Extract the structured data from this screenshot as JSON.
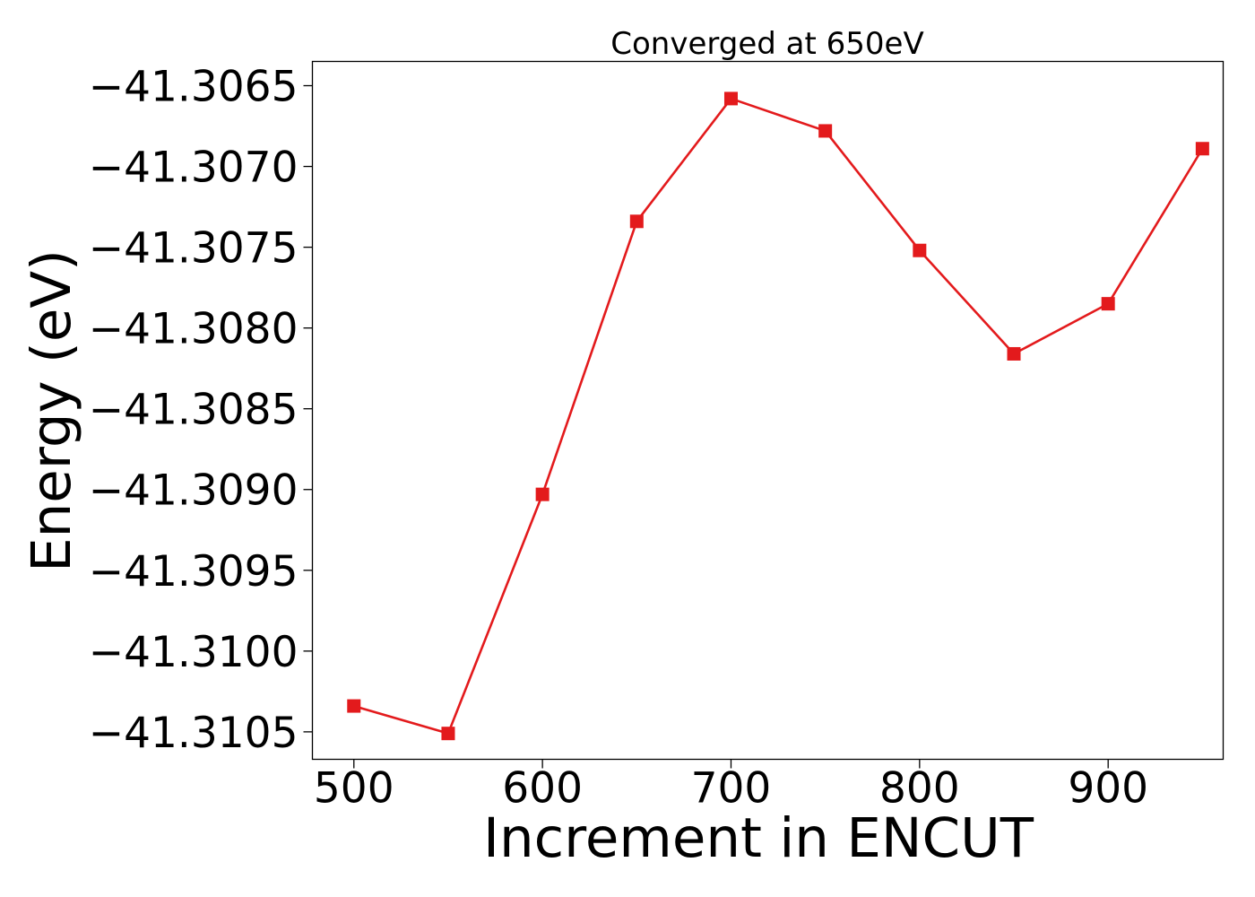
{
  "chart_data": {
    "type": "line",
    "title": "Converged at 650eV",
    "xlabel": "Increment in ENCUT",
    "ylabel": "Energy (eV)",
    "x": [
      500,
      550,
      600,
      650,
      700,
      750,
      800,
      850,
      900,
      950
    ],
    "series": [
      {
        "values": [
          -41.31034,
          -41.31051,
          -41.30903,
          -41.30734,
          -41.30658,
          -41.30678,
          -41.30752,
          -41.30816,
          -41.30785,
          -41.30689
        ],
        "color": "#e31a1c",
        "marker": "square"
      }
    ],
    "xlim": [
      478,
      961
    ],
    "ylim": [
      -41.31067,
      -41.30635
    ],
    "xticks": [
      500,
      600,
      700,
      800,
      900
    ],
    "xtick_labels": [
      "500",
      "600",
      "700",
      "800",
      "900"
    ],
    "yticks": [
      -41.3065,
      -41.307,
      -41.3075,
      -41.308,
      -41.3085,
      -41.309,
      -41.3095,
      -41.31,
      -41.3105
    ],
    "ytick_labels": [
      "−41.3065",
      "−41.3070",
      "−41.3075",
      "−41.3080",
      "−41.3085",
      "−41.3090",
      "−41.3095",
      "−41.3100",
      "−41.3105"
    ],
    "grid": false,
    "legend": "none"
  }
}
